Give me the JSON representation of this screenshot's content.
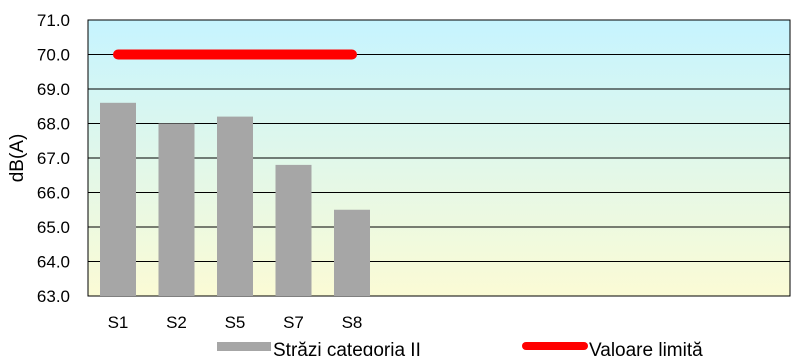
{
  "chart_data": {
    "type": "bar",
    "categories": [
      "S1",
      "S2",
      "S5",
      "S7",
      "S8"
    ],
    "series": [
      {
        "name": "Străzi categoria II",
        "type": "bar",
        "values": [
          68.6,
          68.0,
          68.2,
          66.8,
          65.5
        ],
        "color": "#a6a6a6"
      },
      {
        "name": "Valoare limită",
        "type": "line",
        "values": [
          70.0,
          70.0,
          70.0,
          70.0,
          70.0
        ],
        "color": "#ff0000"
      }
    ],
    "ylabel": "dB(A)",
    "ylim": [
      63.0,
      71.0
    ],
    "yticks": [
      "63.0",
      "64.0",
      "65.0",
      "66.0",
      "67.0",
      "68.0",
      "69.0",
      "70.0",
      "71.0"
    ],
    "grid": true,
    "legend": "bottom",
    "background_gradient": [
      "#c6f4ff",
      "#fbfbd5"
    ]
  }
}
